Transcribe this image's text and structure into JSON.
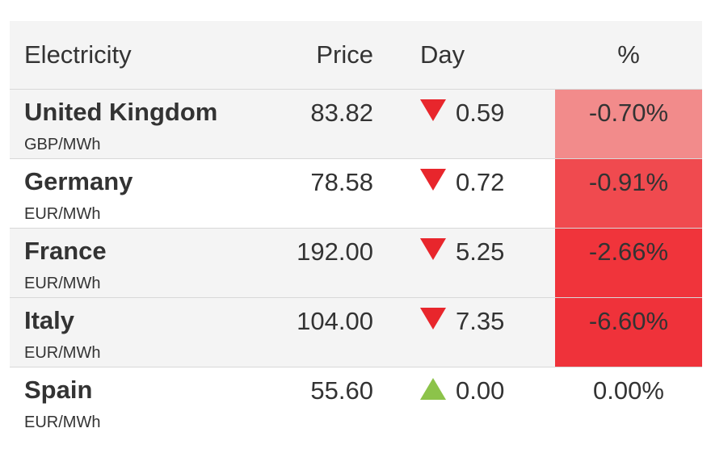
{
  "header": {
    "name": "Electricity",
    "price": "Price",
    "day": "Day",
    "pct": "%"
  },
  "rows": [
    {
      "country": "United Kingdom",
      "unit": "GBP/MWh",
      "price": "83.82",
      "direction": "down",
      "day": "0.59",
      "pct": "-0.70%",
      "pct_bg": "#f28b8b"
    },
    {
      "country": "Germany",
      "unit": "EUR/MWh",
      "price": "78.58",
      "direction": "down",
      "day": "0.72",
      "pct": "-0.91%",
      "pct_bg": "#f04a4f"
    },
    {
      "country": "France",
      "unit": "EUR/MWh",
      "price": "192.00",
      "direction": "down",
      "day": "5.25",
      "pct": "-2.66%",
      "pct_bg": "#f0343b"
    },
    {
      "country": "Italy",
      "unit": "EUR/MWh",
      "price": "104.00",
      "direction": "down",
      "day": "7.35",
      "pct": "-6.60%",
      "pct_bg": "#ef323a"
    },
    {
      "country": "Spain",
      "unit": "EUR/MWh",
      "price": "55.60",
      "direction": "up",
      "day": "0.00",
      "pct": "0.00%",
      "pct_bg": ""
    }
  ],
  "colors": {
    "down_arrow": "#e8262c",
    "up_arrow": "#8cc34a"
  }
}
